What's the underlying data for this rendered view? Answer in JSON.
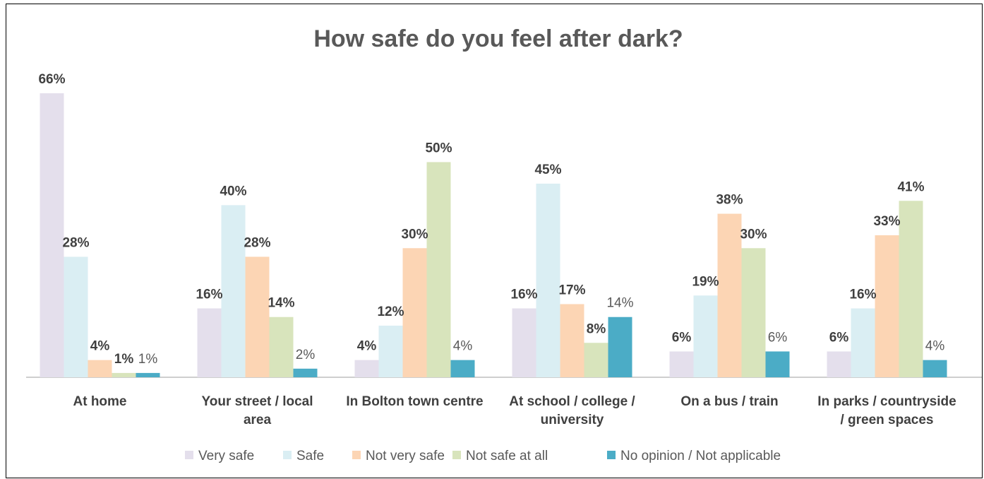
{
  "chart_data": {
    "type": "bar",
    "title": "How safe do you feel after dark?",
    "categories": [
      "At home",
      "Your street / local area",
      "In Bolton town centre",
      "At school / college / university",
      "On a bus / train",
      "In parks / countryside / green spaces"
    ],
    "category_lines": [
      [
        "At home"
      ],
      [
        "Your street / local",
        "area"
      ],
      [
        "In Bolton town centre"
      ],
      [
        "At school / college /",
        "university"
      ],
      [
        "On a bus / train"
      ],
      [
        "In parks / countryside",
        "/ green spaces"
      ]
    ],
    "series": [
      {
        "name": "Very safe",
        "color": "#E4DFEC",
        "values": [
          66,
          16,
          4,
          16,
          6,
          6
        ],
        "label_bold": true
      },
      {
        "name": "Safe",
        "color": "#DAEEF3",
        "values": [
          28,
          40,
          12,
          45,
          19,
          16
        ],
        "label_bold": true
      },
      {
        "name": "Not very safe",
        "color": "#FCD5B4",
        "values": [
          4,
          28,
          30,
          17,
          38,
          33
        ],
        "label_bold": true
      },
      {
        "name": "Not safe at all",
        "color": "#D8E4BC",
        "values": [
          1,
          14,
          50,
          8,
          30,
          41
        ],
        "label_bold": true
      },
      {
        "name": "No opinion / Not applicable",
        "color": "#4BACC6",
        "values": [
          1,
          2,
          4,
          14,
          6,
          4
        ],
        "label_bold": false
      }
    ],
    "value_suffix": "%",
    "ylim": [
      0,
      66
    ],
    "grid": false,
    "legend_position": "bottom",
    "xlabel": "",
    "ylabel": ""
  }
}
